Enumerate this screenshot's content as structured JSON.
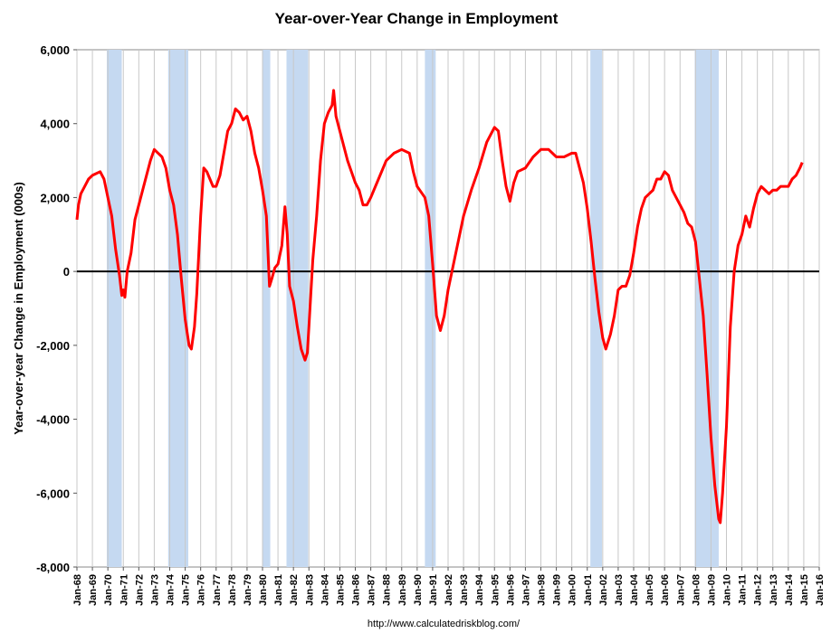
{
  "chart_data": {
    "type": "line",
    "title": "Year-over-Year Change in Employment",
    "y_label": "Year-over-year Change in Employment (000s)",
    "source": "http://www.calculatedriskblog.com/",
    "xlim": [
      1968,
      2016
    ],
    "ylim": [
      -8000,
      6000
    ],
    "yticks": [
      {
        "value": -8000,
        "label": "-8,000"
      },
      {
        "value": -6000,
        "label": "-6,000"
      },
      {
        "value": -4000,
        "label": "-4,000"
      },
      {
        "value": -2000,
        "label": "-2,000"
      },
      0,
      {
        "value": 2000,
        "label": "2,000"
      },
      {
        "value": 4000,
        "label": "4,000"
      },
      {
        "value": 6000,
        "label": "6,000"
      }
    ],
    "xticks": [
      {
        "value": 1968,
        "label": "Jan-68"
      },
      {
        "value": 1969,
        "label": "Jan-69"
      },
      {
        "value": 1970,
        "label": "Jan-70"
      },
      {
        "value": 1971,
        "label": "Jan-71"
      },
      {
        "value": 1972,
        "label": "Jan-72"
      },
      {
        "value": 1973,
        "label": "Jan-73"
      },
      {
        "value": 1974,
        "label": "Jan-74"
      },
      {
        "value": 1975,
        "label": "Jan-75"
      },
      {
        "value": 1976,
        "label": "Jan-76"
      },
      {
        "value": 1977,
        "label": "Jan-77"
      },
      {
        "value": 1978,
        "label": "Jan-78"
      },
      {
        "value": 1979,
        "label": "Jan-79"
      },
      {
        "value": 1980,
        "label": "Jan-80"
      },
      {
        "value": 1981,
        "label": "Jan-81"
      },
      {
        "value": 1982,
        "label": "Jan-82"
      },
      {
        "value": 1983,
        "label": "Jan-83"
      },
      {
        "value": 1984,
        "label": "Jan-84"
      },
      {
        "value": 1985,
        "label": "Jan-85"
      },
      {
        "value": 1986,
        "label": "Jan-86"
      },
      {
        "value": 1987,
        "label": "Jan-87"
      },
      {
        "value": 1988,
        "label": "Jan-88"
      },
      {
        "value": 1989,
        "label": "Jan-89"
      },
      {
        "value": 1990,
        "label": "Jan-90"
      },
      {
        "value": 1991,
        "label": "Jan-91"
      },
      {
        "value": 1992,
        "label": "Jan-92"
      },
      {
        "value": 1993,
        "label": "Jan-93"
      },
      {
        "value": 1994,
        "label": "Jan-94"
      },
      {
        "value": 1995,
        "label": "Jan-95"
      },
      {
        "value": 1996,
        "label": "Jan-96"
      },
      {
        "value": 1997,
        "label": "Jan-97"
      },
      {
        "value": 1998,
        "label": "Jan-98"
      },
      {
        "value": 1999,
        "label": "Jan-99"
      },
      {
        "value": 2000,
        "label": "Jan-00"
      },
      {
        "value": 2001,
        "label": "Jan-01"
      },
      {
        "value": 2002,
        "label": "Jan-02"
      },
      {
        "value": 2003,
        "label": "Jan-03"
      },
      {
        "value": 2004,
        "label": "Jan-04"
      },
      {
        "value": 2005,
        "label": "Jan-05"
      },
      {
        "value": 2006,
        "label": "Jan-06"
      },
      {
        "value": 2007,
        "label": "Jan-07"
      },
      {
        "value": 2008,
        "label": "Jan-08"
      },
      {
        "value": 2009,
        "label": "Jan-09"
      },
      {
        "value": 2010,
        "label": "Jan-10"
      },
      {
        "value": 2011,
        "label": "Jan-11"
      },
      {
        "value": 2012,
        "label": "Jan-12"
      },
      {
        "value": 2013,
        "label": "Jan-13"
      },
      {
        "value": 2014,
        "label": "Jan-14"
      },
      {
        "value": 2015,
        "label": "Jan-15"
      },
      {
        "value": 2016,
        "label": "Jan-16"
      }
    ],
    "grid": true,
    "recession_color": "#c5d9f1",
    "recessions": [
      [
        1969.93,
        1970.9
      ],
      [
        1973.9,
        1975.2
      ],
      [
        1980.0,
        1980.5
      ],
      [
        1981.55,
        1982.95
      ],
      [
        1990.5,
        1991.2
      ],
      [
        2001.2,
        2001.95
      ],
      [
        2007.95,
        2009.5
      ]
    ],
    "x": [
      1968.0,
      1968.1,
      1968.25,
      1968.5,
      1968.75,
      1969.0,
      1969.25,
      1969.5,
      1969.75,
      1970.0,
      1970.25,
      1970.5,
      1970.75,
      1970.9,
      1971.0,
      1971.1,
      1971.25,
      1971.5,
      1971.75,
      1972.0,
      1972.25,
      1972.5,
      1972.75,
      1973.0,
      1973.25,
      1973.5,
      1973.75,
      1974.0,
      1974.25,
      1974.5,
      1974.75,
      1975.0,
      1975.25,
      1975.4,
      1975.6,
      1975.75,
      1976.0,
      1976.2,
      1976.4,
      1976.6,
      1976.8,
      1977.0,
      1977.25,
      1977.5,
      1977.75,
      1978.0,
      1978.25,
      1978.5,
      1978.75,
      1979.0,
      1979.25,
      1979.5,
      1979.75,
      1980.0,
      1980.25,
      1980.45,
      1980.6,
      1980.8,
      1981.0,
      1981.25,
      1981.45,
      1981.6,
      1981.75,
      1982.0,
      1982.25,
      1982.5,
      1982.75,
      1982.9,
      1983.0,
      1983.25,
      1983.5,
      1983.75,
      1984.0,
      1984.25,
      1984.5,
      1984.6,
      1984.75,
      1985.0,
      1985.25,
      1985.5,
      1985.75,
      1986.0,
      1986.25,
      1986.5,
      1986.75,
      1987.0,
      1987.5,
      1988.0,
      1988.5,
      1989.0,
      1989.5,
      1989.75,
      1990.0,
      1990.5,
      1990.75,
      1991.0,
      1991.25,
      1991.5,
      1991.75,
      1992.0,
      1992.25,
      1992.5,
      1992.75,
      1993.0,
      1993.5,
      1994.0,
      1994.5,
      1995.0,
      1995.25,
      1995.5,
      1995.75,
      1996.0,
      1996.25,
      1996.5,
      1997.0,
      1997.5,
      1998.0,
      1998.5,
      1999.0,
      1999.5,
      2000.0,
      2000.25,
      2000.5,
      2000.75,
      2001.0,
      2001.25,
      2001.5,
      2001.75,
      2002.0,
      2002.2,
      2002.5,
      2002.75,
      2003.0,
      2003.25,
      2003.5,
      2003.75,
      2004.0,
      2004.25,
      2004.5,
      2004.75,
      2005.0,
      2005.25,
      2005.5,
      2005.75,
      2006.0,
      2006.25,
      2006.5,
      2006.75,
      2007.0,
      2007.25,
      2007.5,
      2007.75,
      2008.0,
      2008.25,
      2008.5,
      2008.75,
      2009.0,
      2009.25,
      2009.5,
      2009.6,
      2009.75,
      2010.0,
      2010.25,
      2010.5,
      2010.75,
      2011.0,
      2011.25,
      2011.5,
      2011.75,
      2012.0,
      2012.25,
      2012.5,
      2012.75,
      2013.0,
      2013.25,
      2013.5,
      2013.75,
      2014.0,
      2014.25,
      2014.5,
      2014.75,
      2014.9
    ],
    "series": [
      {
        "color": "#ff0000",
        "values": [
          1400,
          1800,
          2100,
          2300,
          2500,
          2600,
          2650,
          2700,
          2500,
          2000,
          1500,
          600,
          -100,
          -650,
          -500,
          -700,
          0,
          500,
          1400,
          1800,
          2200,
          2600,
          3000,
          3300,
          3200,
          3100,
          2800,
          2200,
          1800,
          1000,
          -200,
          -1300,
          -2000,
          -2100,
          -1500,
          -600,
          1500,
          2800,
          2700,
          2500,
          2300,
          2300,
          2600,
          3200,
          3800,
          4000,
          4400,
          4300,
          4100,
          4200,
          3800,
          3200,
          2800,
          2200,
          1500,
          -400,
          -200,
          100,
          200,
          700,
          1750,
          1000,
          -400,
          -800,
          -1500,
          -2100,
          -2400,
          -2200,
          -1500,
          300,
          1500,
          3000,
          4000,
          4300,
          4500,
          4900,
          4200,
          3800,
          3400,
          3000,
          2700,
          2400,
          2200,
          1800,
          1800,
          2000,
          2500,
          3000,
          3200,
          3300,
          3200,
          2700,
          2300,
          2000,
          1500,
          200,
          -1200,
          -1600,
          -1200,
          -500,
          0,
          500,
          1000,
          1500,
          2200,
          2800,
          3500,
          3900,
          3800,
          3000,
          2300,
          1900,
          2400,
          2700,
          2800,
          3100,
          3300,
          3300,
          3100,
          3100,
          3200,
          3200,
          2800,
          2400,
          1700,
          800,
          -200,
          -1100,
          -1800,
          -2100,
          -1700,
          -1200,
          -500,
          -400,
          -400,
          -100,
          500,
          1200,
          1700,
          2000,
          2100,
          2200,
          2500,
          2500,
          2700,
          2600,
          2200,
          2000,
          1800,
          1600,
          1300,
          1200,
          800,
          -200,
          -1200,
          -2800,
          -4500,
          -5800,
          -6700,
          -6800,
          -6000,
          -4200,
          -1500,
          0,
          700,
          1000,
          1500,
          1200,
          1700,
          2100,
          2300,
          2200,
          2100,
          2200,
          2200,
          2300,
          2300,
          2300,
          2500,
          2600,
          2800,
          2950
        ]
      }
    ]
  }
}
